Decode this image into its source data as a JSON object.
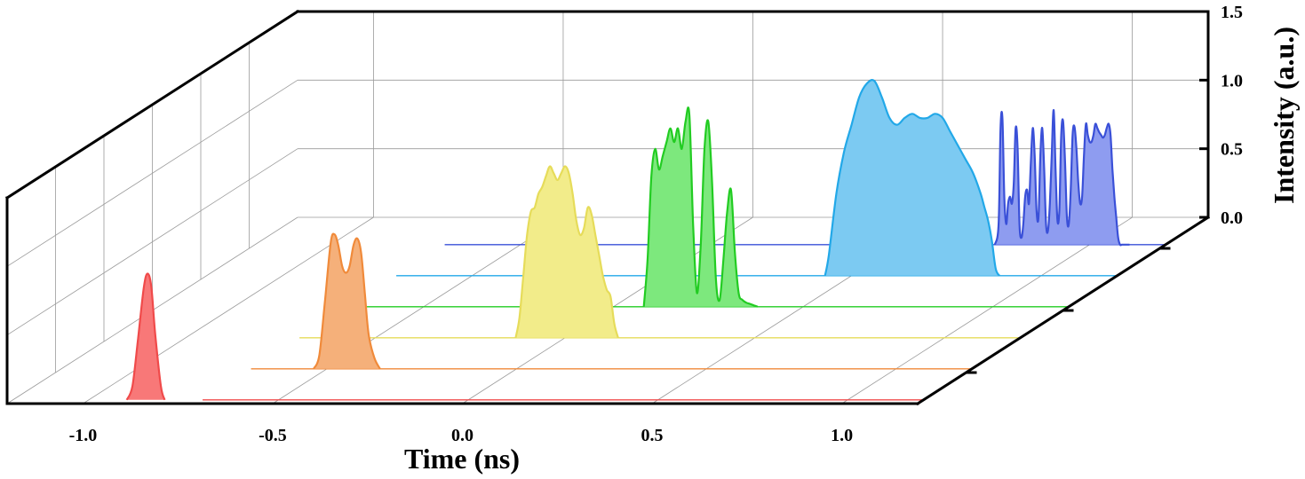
{
  "chart_data": {
    "type": "area",
    "title": "",
    "xlabel": "Time (ns)",
    "zlabel": "Intensity (a.u.)",
    "x_ticks": [
      "-1.0",
      "-0.5",
      "0.0",
      "0.5",
      "1.0"
    ],
    "z_ticks": [
      "0.0",
      "0.5",
      "1.0",
      "1.5"
    ],
    "x_range": [
      -1.2,
      1.2
    ],
    "z_range": [
      0,
      1.5
    ],
    "grid": true,
    "series": [
      {
        "color": "#f04a4a",
        "fill": "#f87878",
        "x": [
          -0.9,
          -0.885,
          -0.87,
          -0.855,
          -0.845,
          -0.835,
          -0.825,
          -0.81,
          -0.8
        ],
        "y": [
          0.0,
          0.1,
          0.45,
          0.82,
          0.92,
          0.82,
          0.48,
          0.1,
          0.0
        ]
      },
      {
        "color": "#f08a3a",
        "fill": "#f5b07a",
        "x": [
          -0.535,
          -0.52,
          -0.505,
          -0.49,
          -0.48,
          -0.47,
          -0.46,
          -0.45,
          -0.44,
          -0.43,
          -0.42,
          -0.41,
          -0.4,
          -0.39,
          -0.375,
          -0.36
        ],
        "y": [
          0.0,
          0.1,
          0.5,
          0.92,
          0.98,
          0.9,
          0.75,
          0.7,
          0.75,
          0.9,
          0.95,
          0.85,
          0.55,
          0.25,
          0.08,
          0.0
        ]
      },
      {
        "color": "#e6dc5a",
        "fill": "#f2ec8a",
        "x": [
          -0.13,
          -0.12,
          -0.11,
          -0.1,
          -0.09,
          -0.08,
          -0.07,
          -0.06,
          -0.05,
          -0.04,
          -0.03,
          -0.02,
          -0.01,
          0.0,
          0.01,
          0.02,
          0.03,
          0.04,
          0.05,
          0.06,
          0.07,
          0.08,
          0.09,
          0.1,
          0.11,
          0.12,
          0.13,
          0.14
        ],
        "y": [
          0.0,
          0.15,
          0.45,
          0.75,
          0.92,
          0.95,
          1.05,
          1.1,
          1.18,
          1.25,
          1.2,
          1.15,
          1.2,
          1.25,
          1.2,
          1.05,
          0.85,
          0.75,
          0.8,
          0.95,
          0.9,
          0.75,
          0.6,
          0.45,
          0.35,
          0.3,
          0.1,
          0.0
        ]
      },
      {
        "color": "#22cc22",
        "fill": "#7de87d",
        "x": [
          0.08,
          0.09,
          0.1,
          0.11,
          0.12,
          0.13,
          0.14,
          0.15,
          0.16,
          0.17,
          0.18,
          0.19,
          0.2,
          0.21,
          0.22,
          0.23,
          0.24,
          0.25,
          0.26,
          0.27,
          0.28,
          0.29,
          0.3,
          0.31,
          0.32,
          0.33,
          0.34,
          0.35,
          0.36,
          0.37,
          0.38
        ],
        "y": [
          0.0,
          0.35,
          0.95,
          1.15,
          1.0,
          1.1,
          1.2,
          1.3,
          1.2,
          1.3,
          1.15,
          1.35,
          1.4,
          0.6,
          0.1,
          0.45,
          1.15,
          1.35,
          0.9,
          0.2,
          0.05,
          0.35,
          0.7,
          0.85,
          0.4,
          0.1,
          0.05,
          0.03,
          0.02,
          0.01,
          0.0
        ]
      },
      {
        "color": "#22a8e8",
        "fill": "#7ccaf2",
        "x": [
          0.43,
          0.44,
          0.46,
          0.48,
          0.5,
          0.52,
          0.54,
          0.56,
          0.58,
          0.6,
          0.62,
          0.64,
          0.66,
          0.68,
          0.7,
          0.72,
          0.74,
          0.76,
          0.78,
          0.8,
          0.82,
          0.84,
          0.85,
          0.86,
          0.87,
          0.88,
          0.89
        ],
        "y": [
          0.0,
          0.15,
          0.6,
          0.9,
          1.1,
          1.3,
          1.4,
          1.42,
          1.3,
          1.15,
          1.1,
          1.15,
          1.18,
          1.15,
          1.15,
          1.18,
          1.15,
          1.05,
          0.95,
          0.85,
          0.75,
          0.6,
          0.5,
          0.4,
          0.25,
          0.05,
          0.0
        ]
      },
      {
        "color": "#3a50d8",
        "fill": "#8e9cf0",
        "x": [
          0.75,
          0.76,
          0.765,
          0.77,
          0.775,
          0.78,
          0.785,
          0.79,
          0.795,
          0.8,
          0.805,
          0.81,
          0.815,
          0.82,
          0.825,
          0.83,
          0.835,
          0.84,
          0.845,
          0.85,
          0.855,
          0.86,
          0.865,
          0.87,
          0.875,
          0.88,
          0.885,
          0.89,
          0.895,
          0.9,
          0.905,
          0.91,
          0.915,
          0.92,
          0.925,
          0.93,
          0.935,
          0.94,
          0.945,
          0.95,
          0.955,
          0.96,
          0.965,
          0.97,
          0.975,
          0.98,
          0.985,
          0.99,
          0.995,
          1.0,
          1.005,
          1.01,
          1.015,
          1.02,
          1.025,
          1.03,
          1.035,
          1.04,
          1.045,
          1.05,
          1.055,
          1.06,
          1.065,
          1.07,
          1.075,
          1.08,
          1.085,
          1.09,
          1.095,
          1.1,
          1.105
        ],
        "y": [
          0.0,
          0.15,
          0.85,
          0.92,
          0.35,
          0.15,
          0.3,
          0.35,
          0.3,
          0.45,
          0.85,
          0.7,
          0.15,
          0.05,
          0.15,
          0.35,
          0.4,
          0.3,
          0.6,
          0.85,
          0.65,
          0.25,
          0.2,
          0.65,
          0.85,
          0.55,
          0.15,
          0.1,
          0.3,
          0.65,
          0.98,
          0.55,
          0.18,
          0.25,
          0.8,
          0.9,
          0.6,
          0.2,
          0.15,
          0.4,
          0.8,
          0.86,
          0.7,
          0.45,
          0.3,
          0.35,
          0.65,
          0.88,
          0.8,
          0.75,
          0.75,
          0.8,
          0.88,
          0.85,
          0.82,
          0.8,
          0.78,
          0.8,
          0.85,
          0.88,
          0.8,
          0.55,
          0.35,
          0.2,
          0.05,
          0.0,
          0.0,
          0.0,
          0.0,
          0.0,
          0.0
        ]
      }
    ]
  }
}
